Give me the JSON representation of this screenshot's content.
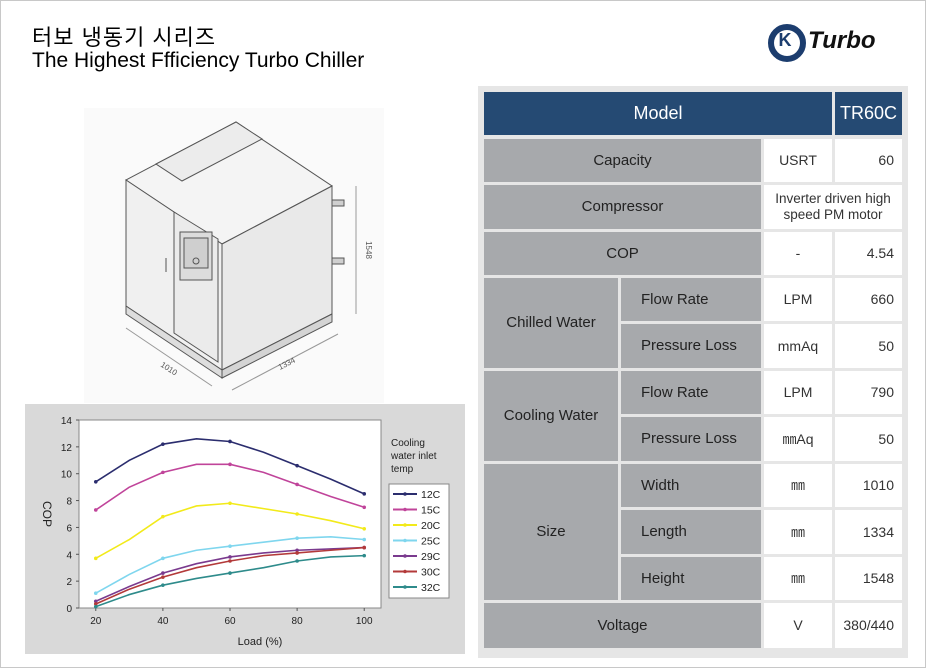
{
  "header": {
    "title_korean": "터보 냉동기 시리즈",
    "title_english": "The Highest  Ffficiency  Turbo Chiller"
  },
  "logo": {
    "letter": "K",
    "text": "Turbo",
    "color": "#1c3d6e"
  },
  "drawing": {
    "dim_width": "1010",
    "dim_length": "1334",
    "dim_height": "1548"
  },
  "spec_table": {
    "header_label": "Model",
    "model_name": "TR60C",
    "capacity": {
      "label": "Capacity",
      "unit": "USRT",
      "value": "60"
    },
    "compressor": {
      "label": "Compressor",
      "value": "Inverter driven high speed PM motor"
    },
    "cop": {
      "label": "COP",
      "unit": "-",
      "value": "4.54"
    },
    "chilled_water": {
      "label": "Chilled Water",
      "flow_rate": {
        "label": "Flow Rate",
        "unit": "LPM",
        "value": "660"
      },
      "pressure_loss": {
        "label": "Pressure Loss",
        "unit": "mmAq",
        "value": "50"
      }
    },
    "cooling_water": {
      "label": "Cooling Water",
      "flow_rate": {
        "label": "Flow Rate",
        "unit": "LPM",
        "value": "790"
      },
      "pressure_loss": {
        "label": "Pressure Loss",
        "unit": "㎜Aq",
        "value": "50"
      }
    },
    "size": {
      "label": "Size",
      "width": {
        "label": "Width",
        "unit": "㎜",
        "value": "1010"
      },
      "length": {
        "label": "Length",
        "unit": "㎜",
        "value": "1334"
      },
      "height": {
        "label": "Height",
        "unit": "㎜",
        "value": "1548"
      }
    },
    "voltage": {
      "label": "Voltage",
      "unit": "V",
      "value": "380/440"
    },
    "colors": {
      "header": "#254a73",
      "label_cell": "#a7a9ac",
      "value_cell": "#ffffff"
    }
  },
  "chart_data": {
    "type": "line",
    "xlabel": "Load (%)",
    "ylabel": "COP",
    "xlim": [
      15,
      105
    ],
    "ylim": [
      0,
      14
    ],
    "x_ticks": [
      "20",
      "40",
      "60",
      "80",
      "100"
    ],
    "y_ticks": [
      "0",
      "2",
      "4",
      "6",
      "8",
      "10",
      "12",
      "14"
    ],
    "legend_title": "Cooling water inlet temp",
    "legend_title_lines": [
      "Cooling",
      "water inlet",
      "temp"
    ],
    "legend_position": "right",
    "x": [
      20,
      30,
      40,
      50,
      60,
      70,
      80,
      90,
      100
    ],
    "series": [
      {
        "name": "12C",
        "color": "#2b2d6e",
        "values": [
          9.4,
          11.0,
          12.2,
          12.6,
          12.4,
          11.6,
          10.6,
          9.6,
          8.5
        ]
      },
      {
        "name": "15C",
        "color": "#c0449a",
        "values": [
          7.3,
          9.0,
          10.1,
          10.7,
          10.7,
          10.1,
          9.2,
          8.3,
          7.5
        ]
      },
      {
        "name": "20C",
        "color": "#f2ea1a",
        "values": [
          3.7,
          5.1,
          6.8,
          7.6,
          7.8,
          7.4,
          7.0,
          6.5,
          5.9
        ]
      },
      {
        "name": "25C",
        "color": "#7fd6ee",
        "values": [
          1.1,
          2.5,
          3.7,
          4.3,
          4.6,
          4.9,
          5.2,
          5.3,
          5.1
        ]
      },
      {
        "name": "29C",
        "color": "#7a3a8e",
        "values": [
          0.5,
          1.6,
          2.6,
          3.3,
          3.8,
          4.1,
          4.3,
          4.4,
          4.5
        ]
      },
      {
        "name": "30C",
        "color": "#b33a3a",
        "values": [
          0.3,
          1.4,
          2.3,
          3.0,
          3.5,
          3.9,
          4.1,
          4.3,
          4.5
        ]
      },
      {
        "name": "32C",
        "color": "#2e8b8b",
        "values": [
          0.1,
          1.0,
          1.7,
          2.2,
          2.6,
          3.0,
          3.5,
          3.8,
          3.9
        ]
      }
    ]
  }
}
